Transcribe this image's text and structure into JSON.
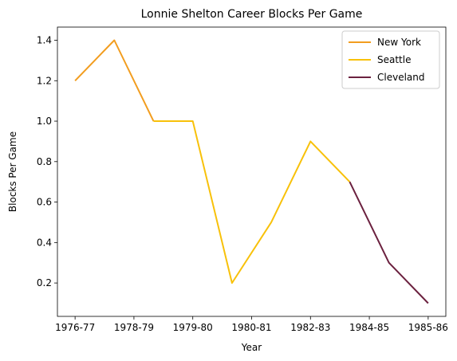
{
  "chart_data": {
    "type": "line",
    "title": "Lonnie Shelton Career Blocks Per Game",
    "xlabel": "Year",
    "ylabel": "Blocks Per Game",
    "x_tick_labels": [
      "1976-77",
      "1978-79",
      "1979-80",
      "1980-81",
      "1982-83",
      "1984-85",
      "1985-86"
    ],
    "x_tick_positions": [
      0,
      1.5,
      3,
      4.5,
      6,
      7.5,
      9
    ],
    "xlim": [
      -0.45,
      9.45
    ],
    "ylim": [
      0.035,
      1.465
    ],
    "y_ticks": [
      0.2,
      0.4,
      0.6,
      0.8,
      1.0,
      1.2,
      1.4
    ],
    "y_tick_labels": [
      "0.2",
      "0.4",
      "0.6",
      "0.8",
      "1.0",
      "1.2",
      "1.4"
    ],
    "grid": false,
    "legend_position": "top-right",
    "series": [
      {
        "name": "New York",
        "color": "#f29d1f",
        "x": [
          0,
          1,
          2
        ],
        "y": [
          1.2,
          1.4,
          1.0
        ]
      },
      {
        "name": "Seattle",
        "color": "#f8c10a",
        "x": [
          2,
          3,
          4,
          5,
          6,
          7
        ],
        "y": [
          1.0,
          1.0,
          0.2,
          0.5,
          0.9,
          0.7
        ]
      },
      {
        "name": "Cleveland",
        "color": "#6b213f",
        "x": [
          7,
          8,
          9
        ],
        "y": [
          0.7,
          0.3,
          0.1
        ]
      }
    ]
  }
}
